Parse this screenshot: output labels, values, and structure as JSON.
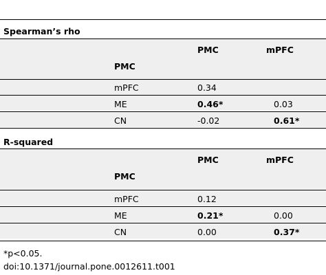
{
  "sections": [
    {
      "title": "Spearman’s rho",
      "col_headers": [
        "PMC",
        "mPFC"
      ],
      "row_header": "PMC",
      "rows": [
        {
          "label": "mPFC",
          "pmc": "0.34",
          "pmc_bold": false,
          "mpfc": "",
          "mpfc_bold": false
        },
        {
          "label": "ME",
          "pmc": "0.46*",
          "pmc_bold": true,
          "mpfc": "0.03",
          "mpfc_bold": false
        },
        {
          "label": "CN",
          "pmc": "-0.02",
          "pmc_bold": false,
          "mpfc": "0.61*",
          "mpfc_bold": true
        }
      ]
    },
    {
      "title": "R-squared",
      "col_headers": [
        "PMC",
        "mPFC"
      ],
      "row_header": "PMC",
      "rows": [
        {
          "label": "mPFC",
          "pmc": "0.12",
          "pmc_bold": false,
          "mpfc": "",
          "mpfc_bold": false
        },
        {
          "label": "ME",
          "pmc": "0.21*",
          "pmc_bold": true,
          "mpfc": "0.00",
          "mpfc_bold": false
        },
        {
          "label": "CN",
          "pmc": "0.00",
          "pmc_bold": false,
          "mpfc": "0.37*",
          "mpfc_bold": true
        }
      ]
    }
  ],
  "footnotes": [
    "*p<0.05.",
    "doi:10.1371/journal.pone.0012611.t001"
  ]
}
